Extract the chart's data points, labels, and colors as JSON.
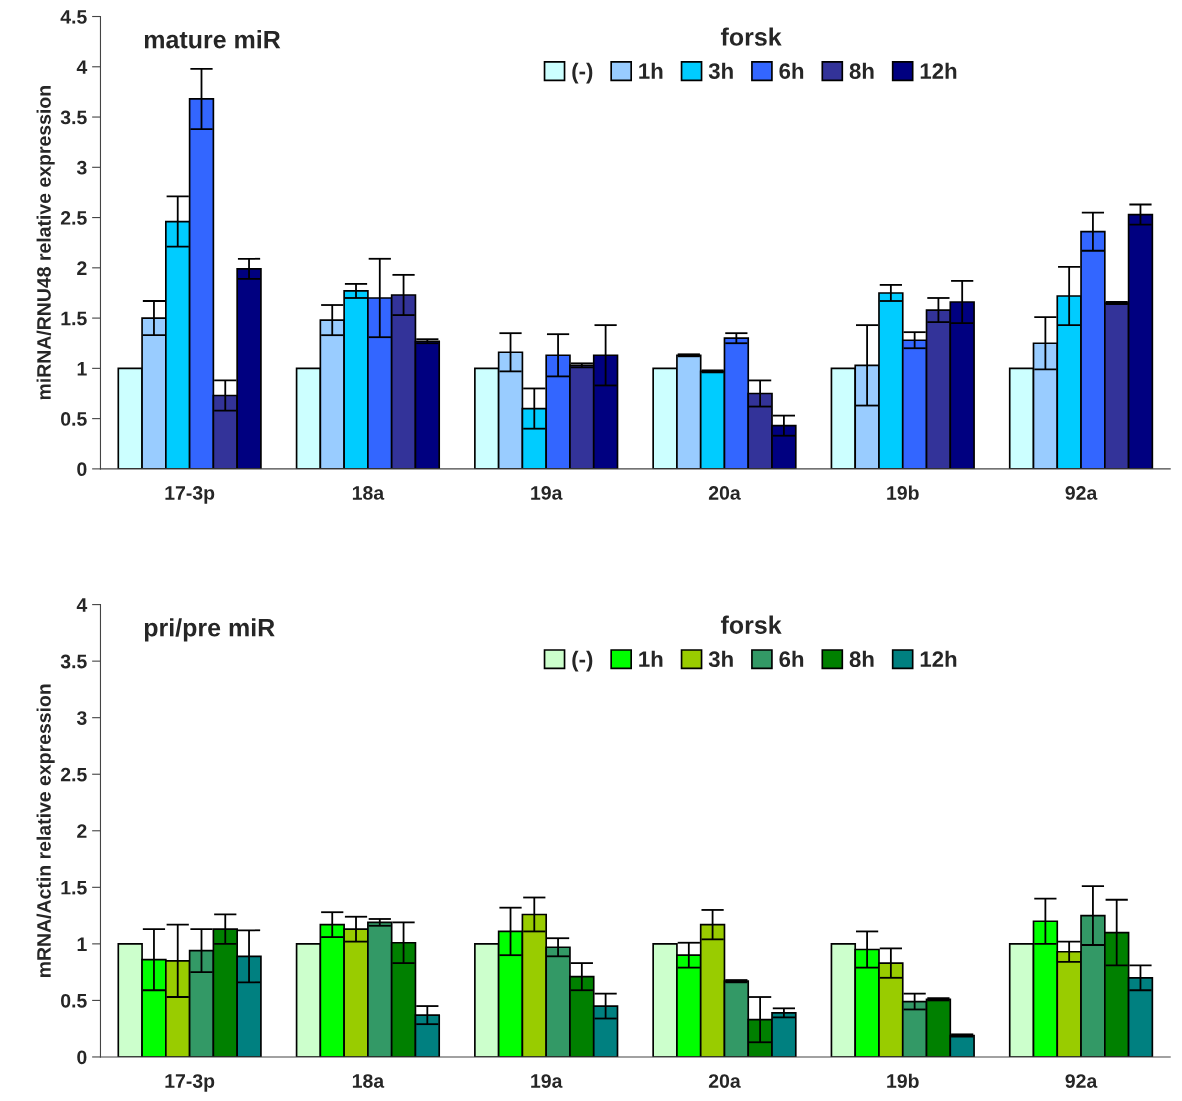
{
  "chart_data": [
    {
      "type": "bar",
      "title": "mature miR",
      "ylabel": "miRNA/RNU48 relative expression",
      "legend_title": "forsk",
      "legend": "top right",
      "grid": false,
      "categories": [
        "17-3p",
        "18a",
        "19a",
        "20a",
        "19b",
        "92a"
      ],
      "ylim": [
        0,
        4.5
      ],
      "yticks": [
        0,
        0.5,
        1,
        1.5,
        2,
        2.5,
        3,
        3.5,
        4,
        4.5
      ],
      "series": [
        {
          "name": "(-)",
          "color": "#ccffff",
          "values": [
            1,
            1,
            1,
            1,
            1,
            1
          ]
        },
        {
          "name": "1h",
          "color": "#99ccff",
          "values": [
            1.5,
            1.48,
            1.16,
            1.13,
            1.03,
            1.25
          ],
          "errors": [
            0.17,
            0.15,
            0.19,
            0.01,
            0.4,
            0.26
          ]
        },
        {
          "name": "3h",
          "color": "#00ccff",
          "values": [
            2.46,
            1.77,
            0.6,
            0.97,
            1.75,
            1.72
          ],
          "errors": [
            0.25,
            0.07,
            0.2,
            0.01,
            0.08,
            0.29
          ]
        },
        {
          "name": "6h",
          "color": "#3366ff",
          "values": [
            3.68,
            1.7,
            1.13,
            1.3,
            1.28,
            2.36
          ],
          "errors": [
            0.3,
            0.39,
            0.21,
            0.05,
            0.08,
            0.19
          ]
        },
        {
          "name": "8h",
          "color": "#333399",
          "values": [
            0.73,
            1.73,
            1.03,
            0.75,
            1.58,
            1.65
          ],
          "errors": [
            0.15,
            0.2,
            0.02,
            0.13,
            0.12,
            0.01
          ]
        },
        {
          "name": "12h",
          "color": "#000080",
          "values": [
            1.99,
            1.27,
            1.13,
            0.43,
            1.66,
            2.53
          ],
          "errors": [
            0.1,
            0.02,
            0.3,
            0.1,
            0.21,
            0.1
          ]
        }
      ]
    },
    {
      "type": "bar",
      "title": "pri/pre miR",
      "ylabel": "mRNA/Actin relative expression",
      "legend_title": "forsk",
      "legend": "top right",
      "grid": false,
      "categories": [
        "17-3p",
        "18a",
        "19a",
        "20a",
        "19b",
        "92a"
      ],
      "ylim": [
        0,
        4
      ],
      "yticks": [
        0,
        0.5,
        1,
        1.5,
        2,
        2.5,
        3,
        3.5,
        4
      ],
      "series": [
        {
          "name": "(-)",
          "color": "#ccffcc",
          "values": [
            1,
            1,
            1,
            1,
            1,
            1
          ]
        },
        {
          "name": "1h",
          "color": "#00ff00",
          "values": [
            0.86,
            1.17,
            1.11,
            0.9,
            0.95,
            1.2
          ],
          "errors": [
            0.27,
            0.11,
            0.21,
            0.11,
            0.16,
            0.2
          ]
        },
        {
          "name": "3h",
          "color": "#99cc00",
          "values": [
            0.85,
            1.13,
            1.26,
            1.17,
            0.83,
            0.93
          ],
          "errors": [
            0.32,
            0.11,
            0.15,
            0.13,
            0.13,
            0.09
          ]
        },
        {
          "name": "6h",
          "color": "#339966",
          "values": [
            0.94,
            1.19,
            0.97,
            0.67,
            0.49,
            1.25
          ],
          "errors": [
            0.19,
            0.03,
            0.08,
            0.01,
            0.07,
            0.26
          ]
        },
        {
          "name": "8h",
          "color": "#008000",
          "values": [
            1.13,
            1.01,
            0.71,
            0.33,
            0.51,
            1.1
          ],
          "errors": [
            0.13,
            0.18,
            0.12,
            0.2,
            0.01,
            0.29
          ]
        },
        {
          "name": "12h",
          "color": "#008080",
          "values": [
            0.89,
            0.37,
            0.45,
            0.39,
            0.19,
            0.7
          ],
          "errors": [
            0.23,
            0.08,
            0.11,
            0.04,
            0.01,
            0.11
          ]
        }
      ]
    }
  ]
}
